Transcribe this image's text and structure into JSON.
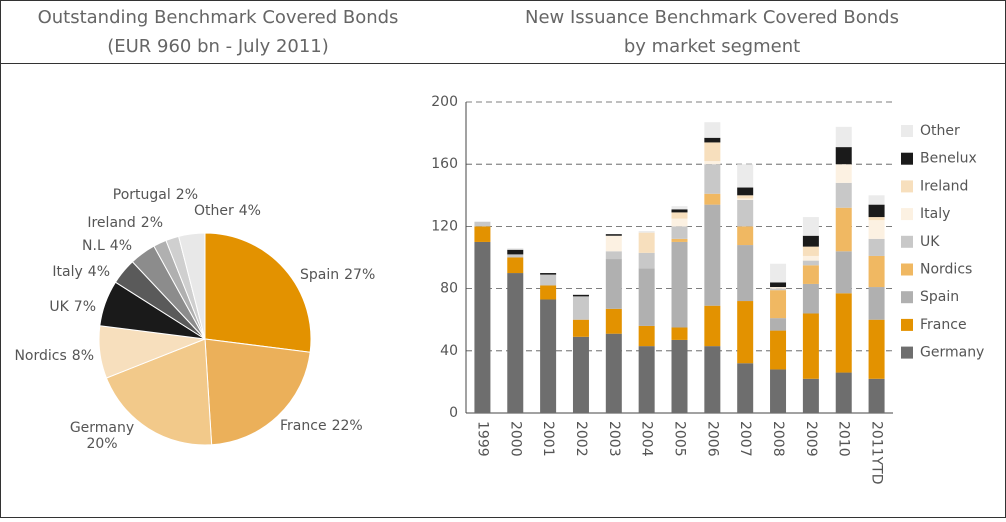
{
  "chart_data": [
    {
      "type": "pie",
      "title": "Outstanding Benchmark Covered Bonds",
      "subtitle": "(EUR 960 bn - July 2011)",
      "categories": [
        "Spain",
        "France",
        "Germany",
        "Nordics",
        "UK",
        "Italy",
        "N.L",
        "Ireland",
        "Portugal",
        "Other"
      ],
      "values": [
        27,
        22,
        20,
        8,
        7,
        4,
        4,
        2,
        2,
        4
      ],
      "value_labels": [
        "27%",
        "22%",
        "20%",
        "8%",
        "7%",
        "4%",
        "4%",
        "2%",
        "2%",
        "4%"
      ],
      "colors": [
        "#e39200",
        "#ebb05a",
        "#f2c98a",
        "#f7dfbd",
        "#1a1a1a",
        "#5a5a5a",
        "#8c8c8c",
        "#b0b0b0",
        "#cfcfcf",
        "#e8e8e8"
      ]
    },
    {
      "type": "stacked-bar",
      "title": "New Issuance Benchmark Covered Bonds",
      "subtitle": "by market segment",
      "categories": [
        "1999",
        "2000",
        "2001",
        "2002",
        "2003",
        "2004",
        "2005",
        "2006",
        "2007",
        "2008",
        "2009",
        "2010",
        "2011YTD"
      ],
      "ylim": [
        0,
        200
      ],
      "yticks": [
        0,
        40,
        80,
        120,
        160,
        200
      ],
      "grid": true,
      "series": [
        {
          "name": "Germany",
          "color": "#6e6e6e",
          "values": [
            110,
            90,
            73,
            49,
            51,
            43,
            47,
            43,
            32,
            28,
            22,
            26,
            22
          ]
        },
        {
          "name": "France",
          "color": "#e39200",
          "values": [
            10,
            10,
            9,
            11,
            16,
            13,
            8,
            26,
            40,
            25,
            42,
            51,
            38
          ]
        },
        {
          "name": "Spain",
          "color": "#b0b0b0",
          "values": [
            0,
            0,
            0,
            0,
            32,
            37,
            55,
            65,
            36,
            8,
            19,
            27,
            21
          ]
        },
        {
          "name": "Nordics",
          "color": "#f0b862",
          "values": [
            0,
            0,
            0,
            0,
            0,
            0,
            2,
            7,
            12,
            18,
            12,
            28,
            20
          ]
        },
        {
          "name": "UK",
          "color": "#c8c8c8",
          "values": [
            3,
            2,
            7,
            15,
            5,
            10,
            8,
            19,
            17,
            1,
            3,
            16,
            11
          ]
        },
        {
          "name": "Italy",
          "color": "#fcf1e2",
          "values": [
            0,
            0,
            0,
            0,
            10,
            0,
            5,
            2,
            1,
            1,
            3,
            12,
            12
          ]
        },
        {
          "name": "Ireland",
          "color": "#f7dfbd",
          "values": [
            0,
            0,
            0,
            0,
            0,
            13,
            4,
            12,
            2,
            0,
            6,
            0,
            2
          ]
        },
        {
          "name": "Benelux",
          "color": "#1a1a1a",
          "values": [
            0,
            3,
            1,
            1,
            1,
            0,
            2,
            3,
            5,
            3,
            7,
            11,
            8
          ]
        },
        {
          "name": "Other",
          "color": "#ebebeb",
          "values": [
            0,
            1,
            0,
            0,
            0,
            1,
            2,
            10,
            15,
            12,
            12,
            13,
            6
          ]
        }
      ]
    }
  ]
}
